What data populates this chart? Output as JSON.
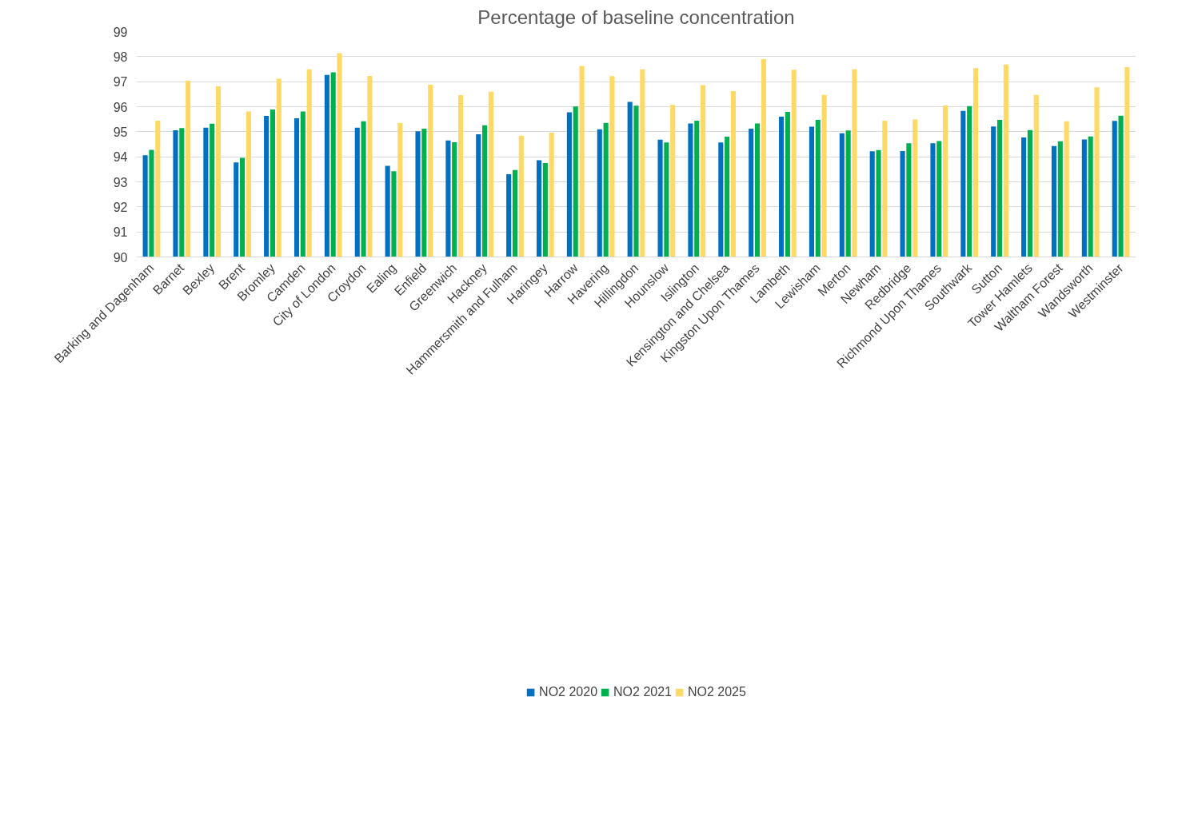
{
  "chart_data": {
    "type": "bar",
    "title": "Percentage of baseline concentration",
    "categories": [
      "Barking and Dagenham",
      "Barnet",
      "Bexley",
      "Brent",
      "Bromley",
      "Camden",
      "City of London",
      "Croydon",
      "Ealing",
      "Enfield",
      "Greenwich",
      "Hackney",
      "Hammersmith and Fulham",
      "Haringey",
      "Harrow",
      "Havering",
      "Hillingdon",
      "Hounslow",
      "Islington",
      "Kensington and Chelsea",
      "Kingston Upon Thames",
      "Lambeth",
      "Lewisham",
      "Merton",
      "Newham",
      "Redbridge",
      "Richmond Upon Thames",
      "Southwark",
      "Sutton",
      "Tower Hamlets",
      "Waltham Forest",
      "Wandsworth",
      "Westminster"
    ],
    "series": [
      {
        "name": "NO2 2020",
        "color": "#0070c0",
        "values": [
          94.06,
          95.06,
          95.16,
          93.77,
          95.63,
          95.54,
          97.27,
          95.16,
          93.64,
          95.02,
          94.65,
          94.9,
          93.3,
          93.86,
          95.78,
          95.1,
          96.19,
          94.68,
          95.33,
          94.57,
          95.12,
          95.6,
          95.2,
          94.94,
          94.22,
          94.23,
          94.54,
          95.83,
          95.21,
          94.77,
          94.43,
          94.69,
          95.43
        ]
      },
      {
        "name": "NO2 2021",
        "color": "#00b050",
        "values": [
          94.28,
          95.15,
          95.32,
          93.96,
          95.89,
          95.81,
          97.37,
          95.42,
          93.42,
          95.12,
          94.58,
          95.26,
          93.47,
          93.75,
          96.01,
          95.35,
          96.04,
          94.57,
          95.44,
          94.8,
          95.33,
          95.79,
          95.47,
          95.05,
          94.27,
          94.54,
          94.63,
          96.02,
          95.47,
          95.07,
          94.62,
          94.81,
          95.64
        ]
      },
      {
        "name": "NO2 2025",
        "color": "#ffd966",
        "values": [
          95.44,
          97.04,
          96.81,
          95.81,
          97.12,
          97.49,
          98.14,
          97.23,
          95.35,
          96.88,
          96.46,
          96.6,
          94.84,
          94.96,
          97.63,
          97.22,
          97.49,
          96.07,
          96.86,
          96.62,
          97.9,
          97.48,
          96.47,
          97.49,
          95.44,
          95.49,
          96.05,
          97.54,
          97.68,
          96.47,
          95.42,
          96.77,
          97.58
        ]
      }
    ],
    "ylim": [
      90,
      99
    ],
    "yticks": [
      90,
      91,
      92,
      93,
      94,
      95,
      96,
      97,
      98,
      99
    ],
    "grid": "y",
    "legend": "bottom"
  }
}
